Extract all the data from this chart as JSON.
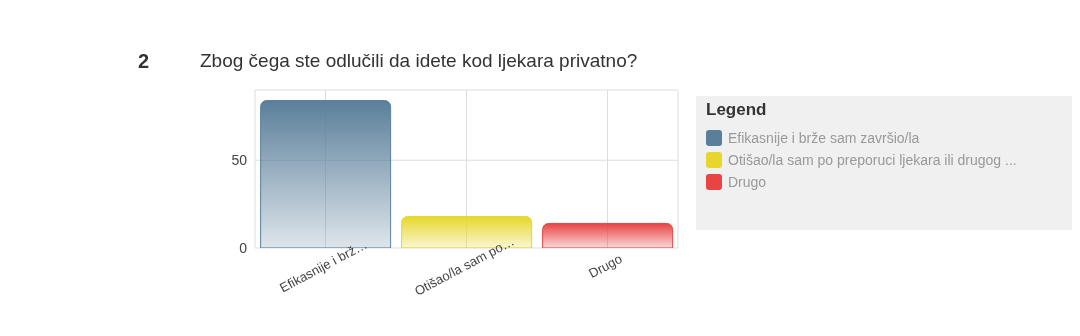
{
  "chart_data": {
    "type": "bar",
    "title": "Zbog čega ste odlučili da idete kod ljekara privatno?",
    "annotations": [
      "2"
    ],
    "categories": [
      "Efikasnije i brž…",
      "Otišao/la sam po…",
      "Drugo"
    ],
    "stacked": true,
    "legend_title": "Legend",
    "legend": "right",
    "grid": true,
    "ylim": [
      0,
      90
    ],
    "yticks": [
      0,
      50
    ],
    "series": [
      {
        "name": "Efikasnije i brže sam završio/la",
        "color": "#5a7f9a",
        "values": [
          84,
          null,
          null
        ]
      },
      {
        "name": "Otišao/la sam po preporuci ljekara ili drugog ...",
        "color": "#e6d72a",
        "values": [
          null,
          18,
          null
        ]
      },
      {
        "name": "Drugo",
        "color": "#e84444",
        "values": [
          null,
          null,
          14
        ]
      }
    ]
  }
}
